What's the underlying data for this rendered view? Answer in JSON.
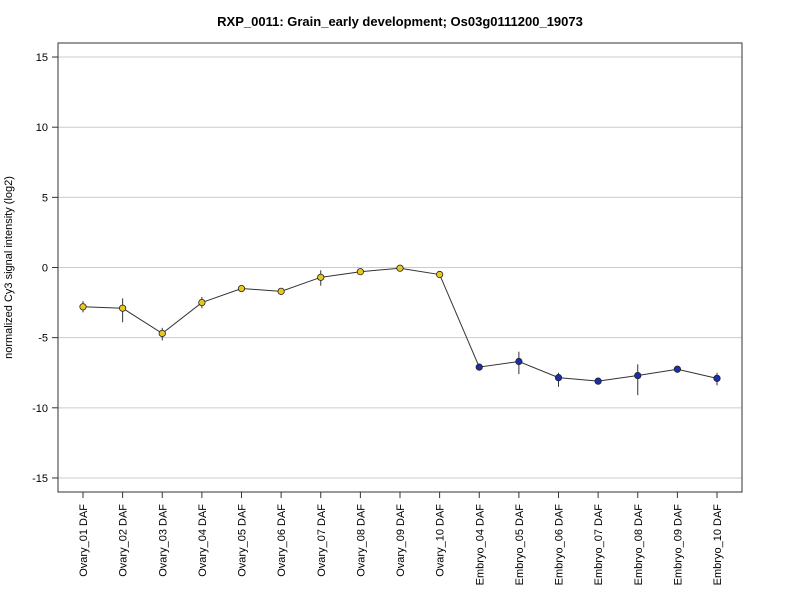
{
  "chart_data": {
    "type": "line",
    "title": "RXP_0011: Grain_early development; Os03g0111200_19073",
    "xlabel": "",
    "ylabel": "normalized Cy3 signal intensity (log2)",
    "ylim": [
      -16,
      16
    ],
    "yticks": [
      -15,
      -10,
      -5,
      0,
      5,
      10,
      15
    ],
    "ytick_labels": [
      "-15",
      "-10",
      "-5",
      "0",
      "5",
      "10",
      "15"
    ],
    "grid": "horizontal",
    "line_color": "#333333",
    "categories": [
      "Ovary_01 DAF",
      "Ovary_02 DAF",
      "Ovary_03 DAF",
      "Ovary_04 DAF",
      "Ovary_05 DAF",
      "Ovary_06 DAF",
      "Ovary_07 DAF",
      "Ovary_08 DAF",
      "Ovary_09 DAF",
      "Ovary_10 DAF",
      "Embryo_04 DAF",
      "Embryo_05 DAF",
      "Embryo_06 DAF",
      "Embryo_07 DAF",
      "Embryo_08 DAF",
      "Embryo_09 DAF",
      "Embryo_10 DAF"
    ],
    "values": [
      -2.8,
      -2.9,
      -4.7,
      -2.5,
      -1.5,
      -1.7,
      -0.7,
      -0.3,
      -0.05,
      -0.5,
      -7.1,
      -6.7,
      -7.85,
      -8.1,
      -7.7,
      -7.25,
      -7.9
    ],
    "err_low": [
      -3.2,
      -3.9,
      -5.2,
      -2.9,
      -1.7,
      -1.85,
      -1.3,
      -0.45,
      -0.2,
      -0.65,
      -7.25,
      -7.6,
      -8.5,
      -8.25,
      -9.1,
      -7.4,
      -8.4
    ],
    "err_high": [
      -2.4,
      -2.2,
      -4.3,
      -2.1,
      -1.3,
      -1.55,
      -0.2,
      -0.15,
      0.1,
      -0.35,
      -6.95,
      -6.0,
      -7.5,
      -7.95,
      -6.9,
      -7.1,
      -7.5
    ],
    "point_colors": [
      "#e8c81e",
      "#e8c81e",
      "#e8c81e",
      "#e8c81e",
      "#e8c81e",
      "#e8c81e",
      "#e8c81e",
      "#e8c81e",
      "#e8c81e",
      "#e8c81e",
      "#1a2eb0",
      "#1a2eb0",
      "#1a2eb0",
      "#1a2eb0",
      "#1a2eb0",
      "#1a2eb0",
      "#1a2eb0"
    ]
  }
}
